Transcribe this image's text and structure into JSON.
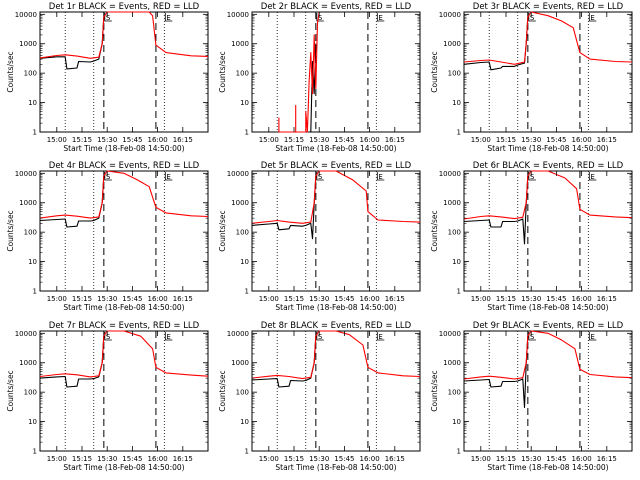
{
  "figure": {
    "x_axis_label": "Start Time (18-Feb-08 14:50:00)",
    "y_axis_label": "Counts/sec",
    "x_tick_labels": [
      "15:00",
      "15:15",
      "15:30",
      "15:45",
      "16:00",
      "16:15"
    ],
    "y_tick_labels": [
      "1",
      "10",
      "100",
      "1000",
      "10000"
    ],
    "marker_labels": [
      "S",
      "E"
    ],
    "colors": {
      "events": "#000000",
      "lld": "#ff0000",
      "axes": "#000000",
      "background": "#ffffff"
    }
  },
  "chart_data": [
    {
      "type": "line",
      "title": "Det 1r BLACK = Events, RED = LLD",
      "xlabel": "Start Time (18-Feb-08 14:50:00)",
      "ylabel": "Counts/sec",
      "y_scale": "log",
      "ylim": [
        1,
        12000
      ],
      "x_ticks": [
        "15:00",
        "15:15",
        "15:30",
        "15:45",
        "16:00",
        "16:15"
      ],
      "grid": false,
      "vlines": {
        "dotted": [
          "15:05",
          "15:22",
          "16:04"
        ],
        "dashed": [
          "15:28",
          "15:59"
        ]
      },
      "markers": [
        {
          "label": "S",
          "x": "15:28"
        },
        {
          "label": "E",
          "x": "16:04"
        }
      ],
      "series": [
        {
          "name": "Events",
          "color": "#000000",
          "x": [
            "14:50",
            "15:00",
            "15:05",
            "15:06",
            "15:12",
            "15:13",
            "15:20",
            "15:22",
            "15:25",
            "15:27",
            "15:28"
          ],
          "y": [
            320,
            360,
            360,
            140,
            150,
            250,
            240,
            260,
            300,
            1000,
            8000
          ]
        },
        {
          "name": "LLD",
          "color": "#ff0000",
          "x": [
            "14:50",
            "15:00",
            "15:05",
            "15:12",
            "15:20",
            "15:25",
            "15:27",
            "15:28",
            "15:30",
            "15:40",
            "15:55",
            "15:57",
            "15:59",
            "16:05",
            "16:20",
            "16:30"
          ],
          "y": [
            330,
            400,
            420,
            380,
            320,
            350,
            1000,
            8000,
            12000,
            12000,
            12000,
            9000,
            900,
            500,
            390,
            370
          ]
        }
      ]
    },
    {
      "type": "line",
      "title": "Det 2r BLACK = Events, RED = LLD",
      "xlabel": "Start Time (18-Feb-08 14:50:00)",
      "ylabel": "Counts/sec",
      "y_scale": "log",
      "ylim": [
        1,
        12000
      ],
      "x_ticks": [
        "15:00",
        "15:15",
        "15:30",
        "15:45",
        "16:00",
        "16:15"
      ],
      "grid": false,
      "vlines": {
        "dotted": [
          "15:05",
          "15:22",
          "16:04"
        ],
        "dashed": [
          "15:28",
          "15:59"
        ]
      },
      "markers": [
        {
          "label": "S",
          "x": "15:28"
        },
        {
          "label": "E",
          "x": "16:04"
        }
      ],
      "series": [
        {
          "name": "Events",
          "color": "#000000",
          "x": [
            "15:25",
            "15:26",
            "15:27",
            "15:28"
          ],
          "y": [
            1,
            250,
            20,
            1000
          ]
        },
        {
          "name": "LLD",
          "color": "#ff0000",
          "x": [
            "15:06",
            "15:06",
            "15:06",
            "15:16",
            "15:16",
            "15:16",
            "15:22",
            "15:22",
            "15:23",
            "15:24",
            "15:25",
            "15:26",
            "15:27",
            "15:28",
            "15:29",
            "15:30"
          ],
          "y": [
            1,
            3,
            1,
            1,
            8,
            1,
            1,
            5,
            1,
            50,
            500,
            20,
            2000,
            30,
            5000,
            12000
          ]
        }
      ]
    },
    {
      "type": "line",
      "title": "Det 3r BLACK = Events, RED = LLD",
      "xlabel": "Start Time (18-Feb-08 14:50:00)",
      "ylabel": "Counts/sec",
      "y_scale": "log",
      "ylim": [
        1,
        12000
      ],
      "x_ticks": [
        "15:00",
        "15:15",
        "15:30",
        "15:45",
        "16:00",
        "16:15"
      ],
      "grid": false,
      "vlines": {
        "dotted": [
          "15:05",
          "15:22",
          "16:04"
        ],
        "dashed": [
          "15:28",
          "15:59"
        ]
      },
      "markers": [
        {
          "label": "S",
          "x": "15:28"
        },
        {
          "label": "E",
          "x": "16:04"
        }
      ],
      "series": [
        {
          "name": "Events",
          "color": "#000000",
          "x": [
            "14:50",
            "15:00",
            "15:05",
            "15:06",
            "15:12",
            "15:13",
            "15:20",
            "15:22",
            "15:26",
            "15:27",
            "15:28"
          ],
          "y": [
            200,
            230,
            240,
            130,
            150,
            170,
            170,
            190,
            220,
            1000,
            8000
          ]
        },
        {
          "name": "LLD",
          "color": "#ff0000",
          "x": [
            "14:50",
            "15:00",
            "15:05",
            "15:12",
            "15:20",
            "15:26",
            "15:27",
            "15:28",
            "15:30",
            "15:40",
            "15:48",
            "15:55",
            "15:59",
            "16:05",
            "16:20",
            "16:30"
          ],
          "y": [
            240,
            270,
            280,
            240,
            200,
            240,
            1000,
            8000,
            12000,
            9000,
            6000,
            3500,
            500,
            300,
            250,
            240
          ]
        }
      ]
    },
    {
      "type": "line",
      "title": "Det 4r BLACK = Events, RED = LLD",
      "xlabel": "Start Time (18-Feb-08 14:50:00)",
      "ylabel": "Counts/sec",
      "y_scale": "log",
      "ylim": [
        1,
        12000
      ],
      "x_ticks": [
        "15:00",
        "15:15",
        "15:30",
        "15:45",
        "16:00",
        "16:15"
      ],
      "grid": false,
      "vlines": {
        "dotted": [
          "15:05",
          "15:22",
          "16:04"
        ],
        "dashed": [
          "15:28",
          "15:59"
        ]
      },
      "markers": [
        {
          "label": "S",
          "x": "15:28"
        },
        {
          "label": "E",
          "x": "16:04"
        }
      ],
      "series": [
        {
          "name": "Events",
          "color": "#000000",
          "x": [
            "14:50",
            "15:00",
            "15:05",
            "15:06",
            "15:12",
            "15:13",
            "15:20",
            "15:22",
            "15:25",
            "15:27",
            "15:28"
          ],
          "y": [
            250,
            270,
            280,
            150,
            160,
            240,
            240,
            250,
            300,
            1000,
            8000
          ]
        },
        {
          "name": "LLD",
          "color": "#ff0000",
          "x": [
            "14:50",
            "15:00",
            "15:05",
            "15:12",
            "15:20",
            "15:25",
            "15:27",
            "15:28",
            "15:30",
            "15:40",
            "15:48",
            "15:55",
            "15:59",
            "16:05",
            "16:20",
            "16:30"
          ],
          "y": [
            300,
            360,
            380,
            350,
            300,
            330,
            1000,
            8000,
            12000,
            10000,
            6000,
            3500,
            700,
            450,
            360,
            340
          ]
        }
      ]
    },
    {
      "type": "line",
      "title": "Det 5r BLACK = Events, RED = LLD",
      "xlabel": "Start Time (18-Feb-08 14:50:00)",
      "ylabel": "Counts/sec",
      "y_scale": "log",
      "ylim": [
        1,
        12000
      ],
      "x_ticks": [
        "15:00",
        "15:15",
        "15:30",
        "15:45",
        "16:00",
        "16:15"
      ],
      "grid": false,
      "vlines": {
        "dotted": [
          "15:05",
          "15:22",
          "16:04"
        ],
        "dashed": [
          "15:28",
          "15:59"
        ]
      },
      "markers": [
        {
          "label": "S",
          "x": "15:28"
        },
        {
          "label": "E",
          "x": "16:04"
        }
      ],
      "series": [
        {
          "name": "Events",
          "color": "#000000",
          "x": [
            "14:50",
            "15:00",
            "15:05",
            "15:06",
            "15:12",
            "15:13",
            "15:20",
            "15:22",
            "15:25",
            "15:26",
            "15:27",
            "15:28"
          ],
          "y": [
            170,
            190,
            200,
            120,
            130,
            170,
            160,
            170,
            200,
            60,
            900,
            8000
          ]
        },
        {
          "name": "LLD",
          "color": "#ff0000",
          "x": [
            "14:50",
            "15:00",
            "15:05",
            "15:12",
            "15:20",
            "15:25",
            "15:27",
            "15:28",
            "15:30",
            "15:40",
            "15:50",
            "15:58",
            "15:59",
            "16:05",
            "16:20",
            "16:30"
          ],
          "y": [
            200,
            230,
            250,
            220,
            200,
            220,
            1000,
            8000,
            12000,
            12000,
            6000,
            2500,
            500,
            260,
            230,
            220
          ]
        }
      ]
    },
    {
      "type": "line",
      "title": "Det 6r BLACK = Events, RED = LLD",
      "xlabel": "Start Time (18-Feb-08 14:50:00)",
      "ylabel": "Counts/sec",
      "y_scale": "log",
      "ylim": [
        1,
        12000
      ],
      "x_ticks": [
        "15:00",
        "15:15",
        "15:30",
        "15:45",
        "16:00",
        "16:15"
      ],
      "grid": false,
      "vlines": {
        "dotted": [
          "15:05",
          "15:22",
          "16:04"
        ],
        "dashed": [
          "15:28",
          "15:59"
        ]
      },
      "markers": [
        {
          "label": "S",
          "x": "15:28"
        },
        {
          "label": "E",
          "x": "16:04"
        }
      ],
      "series": [
        {
          "name": "Events",
          "color": "#000000",
          "x": [
            "14:50",
            "15:00",
            "15:05",
            "15:06",
            "15:12",
            "15:13",
            "15:20",
            "15:22",
            "15:25",
            "15:26",
            "15:27",
            "15:28"
          ],
          "y": [
            230,
            250,
            260,
            150,
            150,
            230,
            230,
            240,
            280,
            40,
            900,
            8000
          ]
        },
        {
          "name": "LLD",
          "color": "#ff0000",
          "x": [
            "14:50",
            "15:00",
            "15:05",
            "15:12",
            "15:20",
            "15:25",
            "15:27",
            "15:28",
            "15:30",
            "15:40",
            "15:50",
            "15:57",
            "15:59",
            "16:05",
            "16:20",
            "16:30"
          ],
          "y": [
            280,
            340,
            360,
            330,
            290,
            320,
            1000,
            8000,
            12000,
            12000,
            7000,
            3000,
            600,
            380,
            330,
            310
          ]
        }
      ]
    },
    {
      "type": "line",
      "title": "Det 7r BLACK = Events, RED = LLD",
      "xlabel": "Start Time (18-Feb-08 14:50:00)",
      "ylabel": "Counts/sec",
      "y_scale": "log",
      "ylim": [
        1,
        12000
      ],
      "x_ticks": [
        "15:00",
        "15:15",
        "15:30",
        "15:45",
        "16:00",
        "16:15"
      ],
      "grid": false,
      "vlines": {
        "dotted": [
          "15:05",
          "15:22",
          "16:04"
        ],
        "dashed": [
          "15:28",
          "15:59"
        ]
      },
      "markers": [
        {
          "label": "S",
          "x": "15:28"
        },
        {
          "label": "E",
          "x": "16:04"
        }
      ],
      "series": [
        {
          "name": "Events",
          "color": "#000000",
          "x": [
            "14:50",
            "15:00",
            "15:05",
            "15:06",
            "15:12",
            "15:13",
            "15:20",
            "15:22",
            "15:25",
            "15:27",
            "15:28"
          ],
          "y": [
            300,
            330,
            340,
            150,
            160,
            280,
            280,
            290,
            330,
            1000,
            8000
          ]
        },
        {
          "name": "LLD",
          "color": "#ff0000",
          "x": [
            "14:50",
            "15:00",
            "15:05",
            "15:12",
            "15:20",
            "15:25",
            "15:27",
            "15:28",
            "15:30",
            "15:40",
            "15:50",
            "15:57",
            "15:59",
            "16:05",
            "16:20",
            "16:30"
          ],
          "y": [
            340,
            400,
            420,
            390,
            330,
            360,
            1000,
            8000,
            12000,
            12000,
            8000,
            3000,
            700,
            450,
            380,
            350
          ]
        }
      ]
    },
    {
      "type": "line",
      "title": "Det 8r BLACK = Events, RED = LLD",
      "xlabel": "Start Time (18-Feb-08 14:50:00)",
      "ylabel": "Counts/sec",
      "y_scale": "log",
      "ylim": [
        1,
        12000
      ],
      "x_ticks": [
        "15:00",
        "15:15",
        "15:30",
        "15:45",
        "16:00",
        "16:15"
      ],
      "grid": false,
      "vlines": {
        "dotted": [
          "15:05",
          "15:22",
          "16:04"
        ],
        "dashed": [
          "15:28",
          "15:59"
        ]
      },
      "markers": [
        {
          "label": "S",
          "x": "15:28"
        },
        {
          "label": "E",
          "x": "16:04"
        }
      ],
      "series": [
        {
          "name": "Events",
          "color": "#000000",
          "x": [
            "14:50",
            "15:00",
            "15:05",
            "15:06",
            "15:12",
            "15:13",
            "15:20",
            "15:22",
            "15:25",
            "15:27",
            "15:28"
          ],
          "y": [
            260,
            280,
            290,
            150,
            160,
            250,
            240,
            250,
            300,
            1000,
            8000
          ]
        },
        {
          "name": "LLD",
          "color": "#ff0000",
          "x": [
            "14:50",
            "15:00",
            "15:05",
            "15:12",
            "15:20",
            "15:25",
            "15:27",
            "15:28",
            "15:30",
            "15:40",
            "15:48",
            "15:56",
            "15:59",
            "16:05",
            "16:20",
            "16:30"
          ],
          "y": [
            300,
            350,
            370,
            340,
            290,
            320,
            1000,
            8000,
            12000,
            12000,
            9000,
            4000,
            700,
            450,
            360,
            340
          ]
        }
      ]
    },
    {
      "type": "line",
      "title": "Det 9r BLACK = Events, RED = LLD",
      "xlabel": "Start Time (18-Feb-08 14:50:00)",
      "ylabel": "Counts/sec",
      "y_scale": "log",
      "ylim": [
        1,
        12000
      ],
      "x_ticks": [
        "15:00",
        "15:15",
        "15:30",
        "15:45",
        "16:00",
        "16:15"
      ],
      "grid": false,
      "vlines": {
        "dotted": [
          "15:05",
          "15:22",
          "16:04"
        ],
        "dashed": [
          "15:28",
          "15:59"
        ]
      },
      "markers": [
        {
          "label": "S",
          "x": "15:28"
        },
        {
          "label": "E",
          "x": "16:04"
        }
      ],
      "series": [
        {
          "name": "Events",
          "color": "#000000",
          "x": [
            "14:50",
            "15:00",
            "15:05",
            "15:06",
            "15:12",
            "15:13",
            "15:20",
            "15:22",
            "15:25",
            "15:26",
            "15:27",
            "15:28"
          ],
          "y": [
            240,
            260,
            270,
            150,
            160,
            230,
            230,
            240,
            280,
            30,
            900,
            8000
          ]
        },
        {
          "name": "LLD",
          "color": "#ff0000",
          "x": [
            "14:50",
            "15:00",
            "15:05",
            "15:12",
            "15:20",
            "15:25",
            "15:27",
            "15:28",
            "15:30",
            "15:40",
            "15:48",
            "15:56",
            "15:59",
            "16:05",
            "16:20",
            "16:30"
          ],
          "y": [
            280,
            330,
            350,
            320,
            280,
            310,
            1000,
            8000,
            12000,
            10000,
            6000,
            3000,
            600,
            400,
            330,
            310
          ]
        }
      ]
    }
  ]
}
